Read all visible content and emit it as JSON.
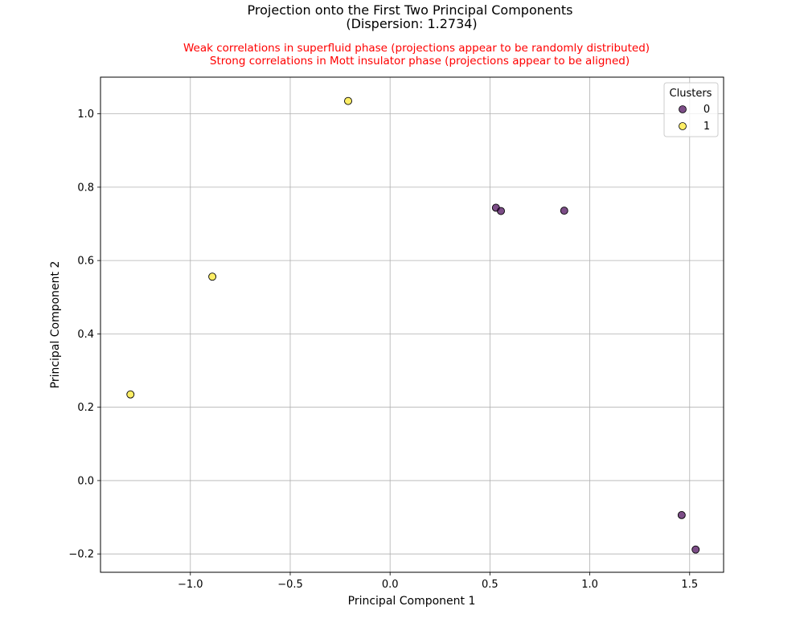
{
  "chart_data": {
    "type": "scatter",
    "title_line1": "Projection onto the First Two Principal Components",
    "title_line2": "(Dispersion: 1.2734)",
    "subtitle_line1": "Weak correlations in superfluid phase (projections appear to be randomly distributed)",
    "subtitle_line2": "Strong correlations in Mott insulator phase (projections appear to be aligned)",
    "subtitle_color": "#ff0000",
    "xlabel": "Principal Component 1",
    "ylabel": "Principal Component 2",
    "xlim": [
      -1.45,
      1.67
    ],
    "ylim": [
      -0.25,
      1.1
    ],
    "x_ticks": [
      -1.0,
      -0.5,
      0.0,
      0.5,
      1.0,
      1.5
    ],
    "x_tick_labels": [
      "−1.0",
      "−0.5",
      "0.0",
      "0.5",
      "1.0",
      "1.5"
    ],
    "y_ticks": [
      -0.2,
      0.0,
      0.2,
      0.4,
      0.6,
      0.8,
      1.0
    ],
    "y_tick_labels": [
      "−0.2",
      "0.0",
      "0.2",
      "0.4",
      "0.6",
      "0.8",
      "1.0"
    ],
    "grid": true,
    "legend": {
      "title": "Clusters",
      "placement": "top-right",
      "entries": [
        {
          "label": "0",
          "color": "#440154"
        },
        {
          "label": "1",
          "color": "#fde725"
        }
      ]
    },
    "series": [
      {
        "name": "0",
        "color": "#440154",
        "points": [
          {
            "x": 0.53,
            "y": 0.744
          },
          {
            "x": 0.555,
            "y": 0.735
          },
          {
            "x": 0.872,
            "y": 0.736
          },
          {
            "x": 1.46,
            "y": -0.094
          },
          {
            "x": 1.53,
            "y": -0.188
          }
        ]
      },
      {
        "name": "1",
        "color": "#fde725",
        "points": [
          {
            "x": -0.21,
            "y": 1.035
          },
          {
            "x": -0.89,
            "y": 0.556
          },
          {
            "x": -1.3,
            "y": 0.235
          }
        ]
      }
    ]
  }
}
